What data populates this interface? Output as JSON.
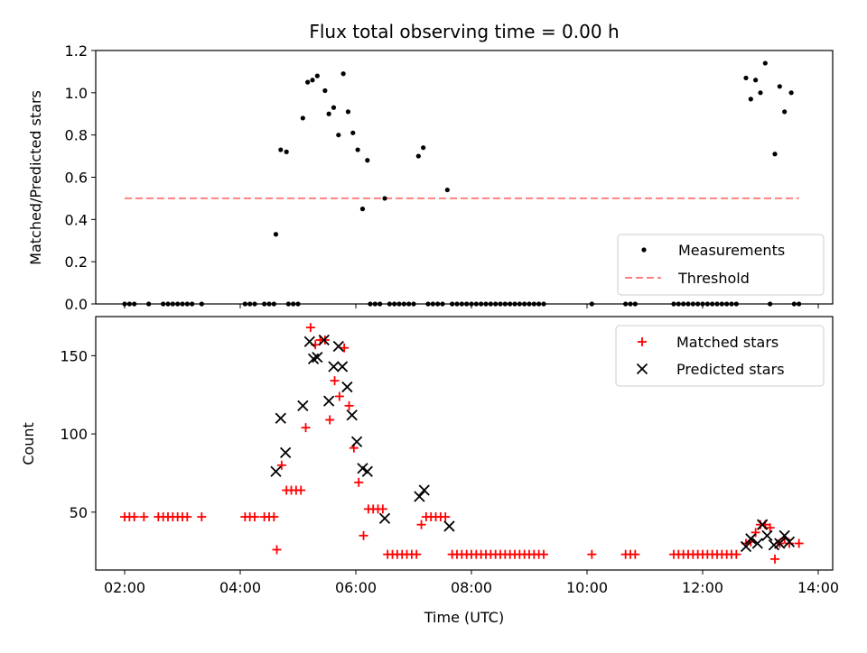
{
  "figure_title": "Flux total observing time = 0.00 h",
  "xlabel": "Time (UTC)",
  "x_ticks": [
    "02:00",
    "04:00",
    "06:00",
    "08:00",
    "10:00",
    "12:00",
    "14:00"
  ],
  "x_tick_hours": [
    2,
    4,
    6,
    8,
    10,
    12,
    14
  ],
  "colors": {
    "measurements": "#000000",
    "threshold": "#ff8080",
    "matched": "#ff0000",
    "predicted": "#000000"
  },
  "chart_data": [
    {
      "type": "scatter",
      "title": "Flux total observing time = 0.00 h",
      "xlabel": "",
      "ylabel": "Matched/Predicted stars",
      "xlim": [
        "01:30",
        "14:15"
      ],
      "ylim": [
        0,
        1.2
      ],
      "yticks": [
        "0.0",
        "0.2",
        "0.4",
        "0.6",
        "0.8",
        "1.0",
        "1.2"
      ],
      "ytick_values": [
        0,
        0.2,
        0.4,
        0.6,
        0.8,
        1.0,
        1.2
      ],
      "legend": {
        "position": "lower-right",
        "entries": [
          "Measurements",
          "Threshold"
        ]
      },
      "threshold": {
        "name": "Threshold",
        "value": 0.5,
        "x_range": [
          "02:00",
          "13:40"
        ]
      },
      "series": [
        {
          "name": "Measurements",
          "points": [
            [
              "02:00",
              0
            ],
            [
              "02:05",
              0
            ],
            [
              "02:10",
              0
            ],
            [
              "02:25",
              0
            ],
            [
              "02:40",
              0
            ],
            [
              "02:45",
              0
            ],
            [
              "02:50",
              0
            ],
            [
              "02:55",
              0
            ],
            [
              "03:00",
              0
            ],
            [
              "03:05",
              0
            ],
            [
              "03:10",
              0
            ],
            [
              "03:20",
              0
            ],
            [
              "04:05",
              0
            ],
            [
              "04:10",
              0
            ],
            [
              "04:15",
              0
            ],
            [
              "04:25",
              0
            ],
            [
              "04:30",
              0
            ],
            [
              "04:35",
              0
            ],
            [
              "04:37",
              0.33
            ],
            [
              "04:42",
              0.73
            ],
            [
              "04:48",
              0.72
            ],
            [
              "04:50",
              0
            ],
            [
              "04:55",
              0
            ],
            [
              "05:00",
              0
            ],
            [
              "05:05",
              0.88
            ],
            [
              "05:10",
              1.05
            ],
            [
              "05:15",
              1.06
            ],
            [
              "05:20",
              1.08
            ],
            [
              "05:28",
              1.01
            ],
            [
              "05:32",
              0.9
            ],
            [
              "05:37",
              0.93
            ],
            [
              "05:42",
              0.8
            ],
            [
              "05:47",
              1.09
            ],
            [
              "05:52",
              0.91
            ],
            [
              "05:57",
              0.81
            ],
            [
              "06:02",
              0.73
            ],
            [
              "06:07",
              0.45
            ],
            [
              "06:12",
              0.68
            ],
            [
              "06:15",
              0
            ],
            [
              "06:20",
              0
            ],
            [
              "06:25",
              0
            ],
            [
              "06:30",
              0.5
            ],
            [
              "06:35",
              0
            ],
            [
              "06:40",
              0
            ],
            [
              "06:45",
              0
            ],
            [
              "06:50",
              0
            ],
            [
              "06:55",
              0
            ],
            [
              "07:00",
              0
            ],
            [
              "07:05",
              0.7
            ],
            [
              "07:10",
              0.74
            ],
            [
              "07:15",
              0
            ],
            [
              "07:20",
              0
            ],
            [
              "07:25",
              0
            ],
            [
              "07:30",
              0
            ],
            [
              "07:35",
              0.54
            ],
            [
              "07:40",
              0
            ],
            [
              "07:45",
              0
            ],
            [
              "07:50",
              0
            ],
            [
              "07:55",
              0
            ],
            [
              "08:00",
              0
            ],
            [
              "08:05",
              0
            ],
            [
              "08:10",
              0
            ],
            [
              "08:15",
              0
            ],
            [
              "08:20",
              0
            ],
            [
              "08:25",
              0
            ],
            [
              "08:30",
              0
            ],
            [
              "08:35",
              0
            ],
            [
              "08:40",
              0
            ],
            [
              "08:45",
              0
            ],
            [
              "08:50",
              0
            ],
            [
              "08:55",
              0
            ],
            [
              "09:00",
              0
            ],
            [
              "09:05",
              0
            ],
            [
              "09:10",
              0
            ],
            [
              "09:15",
              0
            ],
            [
              "10:05",
              0
            ],
            [
              "10:40",
              0
            ],
            [
              "10:45",
              0
            ],
            [
              "10:50",
              0
            ],
            [
              "11:30",
              0
            ],
            [
              "11:35",
              0
            ],
            [
              "11:40",
              0
            ],
            [
              "11:45",
              0
            ],
            [
              "11:50",
              0
            ],
            [
              "11:55",
              0
            ],
            [
              "12:00",
              0
            ],
            [
              "12:05",
              0
            ],
            [
              "12:10",
              0
            ],
            [
              "12:15",
              0
            ],
            [
              "12:20",
              0
            ],
            [
              "12:25",
              0
            ],
            [
              "12:30",
              0
            ],
            [
              "12:35",
              0
            ],
            [
              "12:45",
              1.07
            ],
            [
              "12:50",
              0.97
            ],
            [
              "12:55",
              1.06
            ],
            [
              "13:00",
              1.0
            ],
            [
              "13:05",
              1.14
            ],
            [
              "13:10",
              0
            ],
            [
              "13:15",
              0.71
            ],
            [
              "13:20",
              1.03
            ],
            [
              "13:25",
              0.91
            ],
            [
              "13:32",
              1.0
            ],
            [
              "13:35",
              0
            ],
            [
              "13:40",
              0
            ]
          ]
        }
      ]
    },
    {
      "type": "scatter",
      "title": "",
      "xlabel": "Time (UTC)",
      "ylabel": "Count",
      "xlim": [
        "01:30",
        "14:15"
      ],
      "ylim": [
        13,
        175
      ],
      "yticks": [
        "50",
        "100",
        "150"
      ],
      "ytick_values": [
        50,
        100,
        150
      ],
      "legend": {
        "position": "upper-right",
        "entries": [
          "Matched stars",
          "Predicted stars"
        ]
      },
      "series": [
        {
          "name": "Matched stars",
          "marker": "plus",
          "points": [
            [
              "02:00",
              47
            ],
            [
              "02:05",
              47
            ],
            [
              "02:10",
              47
            ],
            [
              "02:20",
              47
            ],
            [
              "02:35",
              47
            ],
            [
              "02:40",
              47
            ],
            [
              "02:45",
              47
            ],
            [
              "02:50",
              47
            ],
            [
              "02:55",
              47
            ],
            [
              "03:00",
              47
            ],
            [
              "03:05",
              47
            ],
            [
              "03:20",
              47
            ],
            [
              "04:05",
              47
            ],
            [
              "04:10",
              47
            ],
            [
              "04:15",
              47
            ],
            [
              "04:25",
              47
            ],
            [
              "04:30",
              47
            ],
            [
              "04:35",
              47
            ],
            [
              "04:38",
              26
            ],
            [
              "04:43",
              80
            ],
            [
              "04:48",
              64
            ],
            [
              "04:53",
              64
            ],
            [
              "04:58",
              64
            ],
            [
              "05:03",
              64
            ],
            [
              "05:08",
              104
            ],
            [
              "05:13",
              168
            ],
            [
              "05:18",
              157
            ],
            [
              "05:23",
              160
            ],
            [
              "05:28",
              160
            ],
            [
              "05:33",
              109
            ],
            [
              "05:38",
              134
            ],
            [
              "05:43",
              124
            ],
            [
              "05:48",
              155
            ],
            [
              "05:53",
              118
            ],
            [
              "05:58",
              91
            ],
            [
              "06:03",
              69
            ],
            [
              "06:08",
              35
            ],
            [
              "06:13",
              52
            ],
            [
              "06:18",
              52
            ],
            [
              "06:23",
              52
            ],
            [
              "06:28",
              52
            ],
            [
              "06:33",
              23
            ],
            [
              "06:38",
              23
            ],
            [
              "06:43",
              23
            ],
            [
              "06:48",
              23
            ],
            [
              "06:53",
              23
            ],
            [
              "06:58",
              23
            ],
            [
              "07:03",
              23
            ],
            [
              "07:08",
              42
            ],
            [
              "07:13",
              47
            ],
            [
              "07:18",
              47
            ],
            [
              "07:23",
              47
            ],
            [
              "07:28",
              47
            ],
            [
              "07:33",
              47
            ],
            [
              "07:40",
              23
            ],
            [
              "07:45",
              23
            ],
            [
              "07:50",
              23
            ],
            [
              "07:55",
              23
            ],
            [
              "08:00",
              23
            ],
            [
              "08:05",
              23
            ],
            [
              "08:10",
              23
            ],
            [
              "08:15",
              23
            ],
            [
              "08:20",
              23
            ],
            [
              "08:25",
              23
            ],
            [
              "08:30",
              23
            ],
            [
              "08:35",
              23
            ],
            [
              "08:40",
              23
            ],
            [
              "08:45",
              23
            ],
            [
              "08:50",
              23
            ],
            [
              "08:55",
              23
            ],
            [
              "09:00",
              23
            ],
            [
              "09:05",
              23
            ],
            [
              "09:10",
              23
            ],
            [
              "09:15",
              23
            ],
            [
              "10:05",
              23
            ],
            [
              "10:40",
              23
            ],
            [
              "10:45",
              23
            ],
            [
              "10:50",
              23
            ],
            [
              "11:30",
              23
            ],
            [
              "11:35",
              23
            ],
            [
              "11:40",
              23
            ],
            [
              "11:45",
              23
            ],
            [
              "11:50",
              23
            ],
            [
              "11:55",
              23
            ],
            [
              "12:00",
              23
            ],
            [
              "12:05",
              23
            ],
            [
              "12:10",
              23
            ],
            [
              "12:15",
              23
            ],
            [
              "12:20",
              23
            ],
            [
              "12:25",
              23
            ],
            [
              "12:30",
              23
            ],
            [
              "12:35",
              23
            ],
            [
              "12:45",
              30
            ],
            [
              "12:50",
              31
            ],
            [
              "12:55",
              37
            ],
            [
              "13:00",
              42
            ],
            [
              "13:05",
              42
            ],
            [
              "13:10",
              40
            ],
            [
              "13:15",
              20
            ],
            [
              "13:20",
              30
            ],
            [
              "13:25",
              33
            ],
            [
              "13:30",
              30
            ],
            [
              "13:40",
              30
            ]
          ]
        },
        {
          "name": "Predicted stars",
          "marker": "x",
          "points": [
            [
              "04:37",
              76
            ],
            [
              "04:42",
              110
            ],
            [
              "04:47",
              88
            ],
            [
              "05:05",
              118
            ],
            [
              "05:12",
              159
            ],
            [
              "05:16",
              148
            ],
            [
              "05:20",
              149
            ],
            [
              "05:27",
              160
            ],
            [
              "05:32",
              121
            ],
            [
              "05:37",
              143
            ],
            [
              "05:42",
              156
            ],
            [
              "05:46",
              143
            ],
            [
              "05:51",
              130
            ],
            [
              "05:56",
              112
            ],
            [
              "06:01",
              95
            ],
            [
              "06:07",
              78
            ],
            [
              "06:12",
              76
            ],
            [
              "06:30",
              46
            ],
            [
              "07:06",
              60
            ],
            [
              "07:11",
              64
            ],
            [
              "07:37",
              41
            ],
            [
              "12:45",
              28
            ],
            [
              "12:50",
              33
            ],
            [
              "12:57",
              30
            ],
            [
              "13:02",
              42
            ],
            [
              "13:07",
              35
            ],
            [
              "13:14",
              29
            ],
            [
              "13:20",
              30
            ],
            [
              "13:25",
              35
            ],
            [
              "13:30",
              31
            ]
          ]
        }
      ]
    }
  ]
}
